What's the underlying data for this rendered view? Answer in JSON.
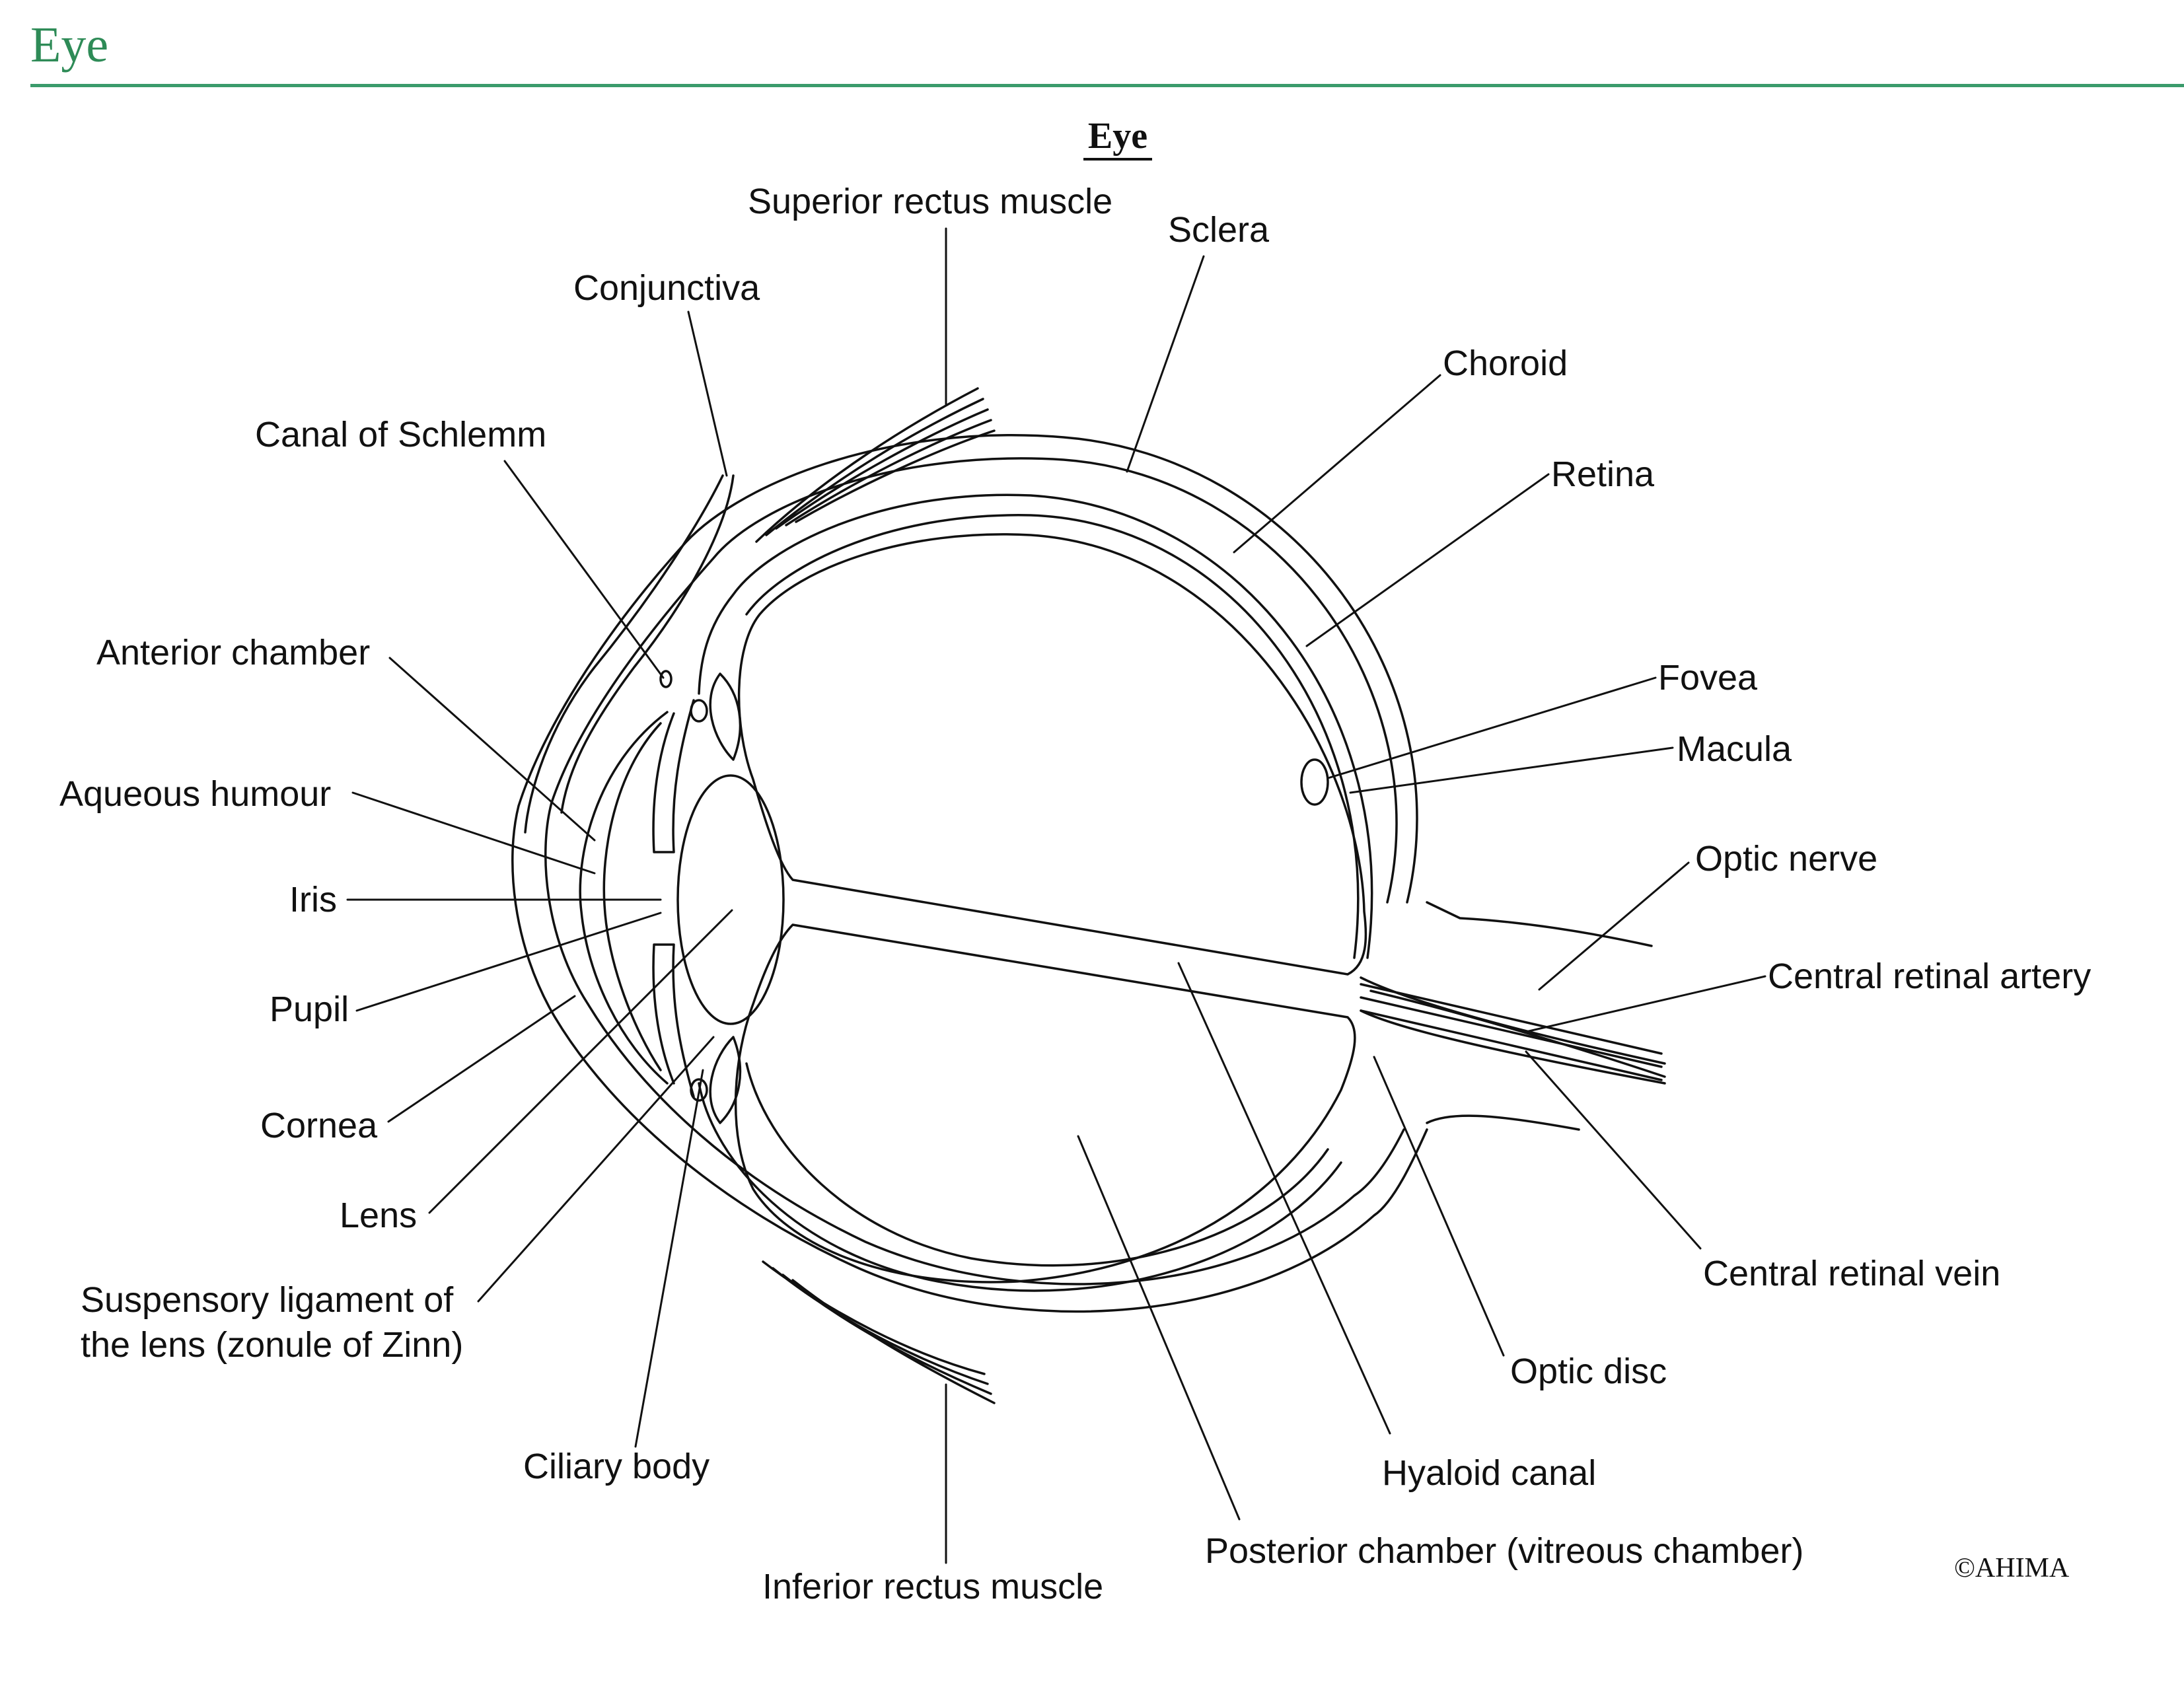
{
  "header": {
    "title": "Eye"
  },
  "diagram": {
    "title": "Eye",
    "labels": {
      "superior_rectus_muscle": "Superior rectus muscle",
      "sclera": "Sclera",
      "conjunctiva": "Conjunctiva",
      "choroid": "Choroid",
      "canal_of_schlemm": "Canal of Schlemm",
      "retina": "Retina",
      "anterior_chamber": "Anterior chamber",
      "fovea": "Fovea",
      "macula": "Macula",
      "aqueous_humour": "Aqueous humour",
      "iris": "Iris",
      "optic_nerve": "Optic nerve",
      "central_retinal_artery": "Central retinal artery",
      "pupil": "Pupil",
      "cornea": "Cornea",
      "lens": "Lens",
      "suspensory_ligament_line1": "Suspensory ligament of",
      "suspensory_ligament_line2": "the lens (zonule of Zinn)",
      "central_retinal_vein": "Central retinal vein",
      "optic_disc": "Optic disc",
      "ciliary_body": "Ciliary body",
      "hyaloid_canal": "Hyaloid canal",
      "posterior_chamber": "Posterior chamber (vitreous chamber)",
      "inferior_rectus_muscle": "Inferior rectus muscle"
    },
    "copyright": "©AHIMA"
  },
  "colors": {
    "title": "#2e8b57",
    "rule": "#3a9b6b",
    "ink": "#111111"
  }
}
